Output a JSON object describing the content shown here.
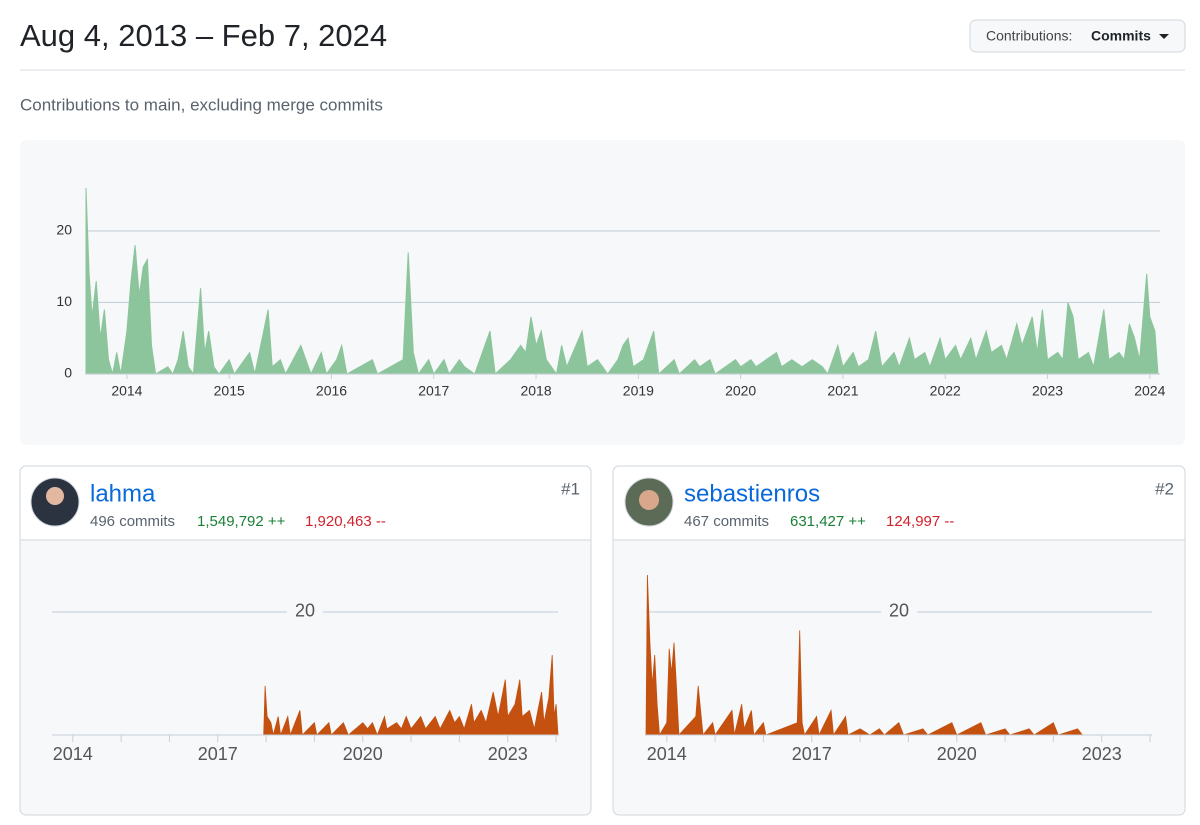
{
  "header": {
    "title": "Aug 4, 2013 – Feb 7, 2024",
    "button_label": "Contributions:",
    "button_value": "Commits"
  },
  "subtitle": "Contributions to main, excluding merge commits",
  "contributors": [
    {
      "rank": "#1",
      "name": "lahma",
      "commits": "496 commits",
      "additions": "1,549,792 ++",
      "deletions": "1,920,463 --"
    },
    {
      "rank": "#2",
      "name": "sebastienros",
      "commits": "467 commits",
      "additions": "631,427 ++",
      "deletions": "124,997 --"
    }
  ],
  "chart_data": [
    {
      "type": "area",
      "color": "#8cc59b",
      "x": [
        2013.6,
        2013.63,
        2013.66,
        2013.7,
        2013.74,
        2013.78,
        2013.82,
        2013.86,
        2013.9,
        2013.94,
        2014.0,
        2014.04,
        2014.08,
        2014.12,
        2014.16,
        2014.2,
        2014.24,
        2014.28,
        2014.4,
        2014.45,
        2014.5,
        2014.55,
        2014.6,
        2014.65,
        2014.72,
        2014.76,
        2014.8,
        2014.85,
        2014.9,
        2015.0,
        2015.05,
        2015.15,
        2015.2,
        2015.25,
        2015.38,
        2015.42,
        2015.5,
        2015.55,
        2015.7,
        2015.75,
        2015.8,
        2015.9,
        2015.95,
        2016.05,
        2016.1,
        2016.15,
        2016.4,
        2016.45,
        2016.7,
        2016.75,
        2016.8,
        2016.85,
        2016.95,
        2017.0,
        2017.1,
        2017.15,
        2017.25,
        2017.3,
        2017.4,
        2017.55,
        2017.6,
        2017.75,
        2017.85,
        2017.9,
        2017.95,
        2018.0,
        2018.05,
        2018.1,
        2018.2,
        2018.25,
        2018.3,
        2018.45,
        2018.5,
        2018.6,
        2018.7,
        2018.8,
        2018.85,
        2018.9,
        2018.95,
        2019.05,
        2019.15,
        2019.2,
        2019.35,
        2019.4,
        2019.55,
        2019.6,
        2019.7,
        2019.75,
        2019.95,
        2020.0,
        2020.1,
        2020.15,
        2020.25,
        2020.35,
        2020.4,
        2020.5,
        2020.6,
        2020.7,
        2020.8,
        2020.85,
        2020.95,
        2021.0,
        2021.1,
        2021.15,
        2021.25,
        2021.32,
        2021.38,
        2021.5,
        2021.55,
        2021.65,
        2021.7,
        2021.8,
        2021.85,
        2021.95,
        2022.0,
        2022.1,
        2022.15,
        2022.25,
        2022.3,
        2022.4,
        2022.45,
        2022.55,
        2022.6,
        2022.7,
        2022.75,
        2022.85,
        2022.9,
        2022.95,
        2023.0,
        2023.1,
        2023.15,
        2023.2,
        2023.25,
        2023.3,
        2023.4,
        2023.45,
        2023.55,
        2023.6,
        2023.7,
        2023.75,
        2023.8,
        2023.85,
        2023.9,
        2023.97,
        2024.0,
        2024.05,
        2024.08
      ],
      "values": [
        26,
        14,
        8,
        13,
        5,
        9,
        2,
        0,
        3,
        0,
        6,
        13,
        18,
        11,
        15,
        16,
        4,
        0,
        1,
        0,
        2,
        6,
        1,
        0,
        12,
        3,
        6,
        1,
        0,
        2,
        0,
        2,
        3,
        0,
        9,
        1,
        2,
        0,
        4,
        2,
        0,
        3,
        0,
        2,
        4,
        0,
        2,
        0,
        2,
        17,
        3,
        0,
        2,
        0,
        2,
        0,
        2,
        1,
        0,
        6,
        0,
        2,
        4,
        3,
        8,
        4,
        6,
        2,
        0,
        4,
        1,
        6,
        1,
        2,
        0,
        2,
        4,
        5,
        1,
        2,
        6,
        0,
        2,
        0,
        2,
        1,
        2,
        0,
        2,
        1,
        2,
        1,
        2,
        3,
        1,
        2,
        1,
        2,
        1,
        0,
        4,
        1,
        3,
        1,
        2,
        6,
        1,
        3,
        1,
        5,
        2,
        3,
        1,
        5,
        2,
        4,
        2,
        5,
        2,
        6,
        3,
        4,
        2,
        7,
        4,
        8,
        3,
        9,
        2,
        3,
        2,
        10,
        8,
        2,
        3,
        1,
        9,
        2,
        3,
        2,
        7,
        5,
        2,
        14,
        8,
        6,
        0
      ],
      "xlim": [
        2013.6,
        2024.08
      ],
      "ylim": [
        0,
        26
      ],
      "xticks": [
        2014,
        2015,
        2016,
        2017,
        2018,
        2019,
        2020,
        2021,
        2022,
        2023,
        2024
      ],
      "yticks": [
        0,
        10,
        20
      ],
      "grid": true
    },
    {
      "type": "area",
      "color": "#c4510f",
      "x": [
        2013.57,
        2017.95,
        2017.98,
        2018.02,
        2018.1,
        2018.15,
        2018.25,
        2018.3,
        2018.45,
        2018.5,
        2018.7,
        2018.75,
        2019.0,
        2019.05,
        2019.3,
        2019.35,
        2019.6,
        2019.7,
        2020.0,
        2020.1,
        2020.2,
        2020.3,
        2020.45,
        2020.5,
        2020.7,
        2020.8,
        2020.9,
        2021.0,
        2021.2,
        2021.3,
        2021.5,
        2021.6,
        2021.8,
        2021.9,
        2022.0,
        2022.1,
        2022.25,
        2022.3,
        2022.45,
        2022.55,
        2022.7,
        2022.8,
        2022.95,
        2023.0,
        2023.15,
        2023.25,
        2023.3,
        2023.45,
        2023.55,
        2023.7,
        2023.75,
        2023.85,
        2023.92,
        2023.96,
        2024.0,
        2024.04
      ],
      "values": [
        0,
        0,
        8,
        3,
        2,
        0,
        3,
        0,
        3,
        0,
        4,
        0,
        2,
        0,
        2,
        0,
        2,
        0,
        2,
        1,
        2,
        0,
        3,
        1,
        2,
        1,
        3,
        1,
        3,
        1,
        3,
        1,
        4,
        2,
        3,
        1,
        5,
        2,
        4,
        2,
        7,
        3,
        9,
        3,
        5,
        9,
        3,
        4,
        1,
        7,
        2,
        6,
        13,
        3,
        5,
        0
      ],
      "xlim": [
        2013.57,
        2024.04
      ],
      "ylim": [
        0,
        26
      ],
      "xticks": [
        2014,
        2017,
        2020,
        2023
      ],
      "xminorticks": [
        2015,
        2016,
        2018,
        2019,
        2021,
        2022,
        2024
      ],
      "yticks": [
        20
      ],
      "grid": true
    },
    {
      "type": "area",
      "color": "#c4510f",
      "x": [
        2013.57,
        2013.6,
        2013.65,
        2013.7,
        2013.75,
        2013.8,
        2013.85,
        2014.0,
        2014.05,
        2014.1,
        2014.15,
        2014.2,
        2014.25,
        2014.6,
        2014.65,
        2014.7,
        2014.75,
        2014.95,
        2015.0,
        2015.35,
        2015.4,
        2015.55,
        2015.6,
        2015.75,
        2015.8,
        2016.0,
        2016.05,
        2016.7,
        2016.75,
        2016.8,
        2016.85,
        2017.1,
        2017.15,
        2017.4,
        2017.45,
        2017.7,
        2017.75,
        2018.0,
        2018.2,
        2018.4,
        2018.5,
        2018.8,
        2018.9,
        2019.3,
        2019.4,
        2019.9,
        2020.0,
        2020.5,
        2020.6,
        2021.0,
        2021.1,
        2021.5,
        2021.6,
        2022.0,
        2022.1,
        2022.5,
        2022.6,
        2024.04
      ],
      "values": [
        0,
        26,
        15,
        8,
        13,
        5,
        0,
        2,
        14,
        10,
        15,
        8,
        0,
        3,
        8,
        4,
        0,
        2,
        0,
        4,
        0,
        5,
        1,
        4,
        0,
        2,
        0,
        2,
        17,
        2,
        0,
        3,
        0,
        4,
        0,
        3,
        0,
        1,
        0,
        1,
        0,
        2,
        0,
        1,
        0,
        2,
        0,
        2,
        0,
        1,
        0,
        1,
        0,
        2,
        0,
        1,
        0,
        0
      ],
      "xlim": [
        2013.57,
        2024.04
      ],
      "ylim": [
        0,
        26
      ],
      "xticks": [
        2014,
        2017,
        2020,
        2023
      ],
      "xminorticks": [
        2015,
        2016,
        2018,
        2019,
        2021,
        2022,
        2024
      ],
      "yticks": [
        20
      ],
      "grid": true
    }
  ]
}
